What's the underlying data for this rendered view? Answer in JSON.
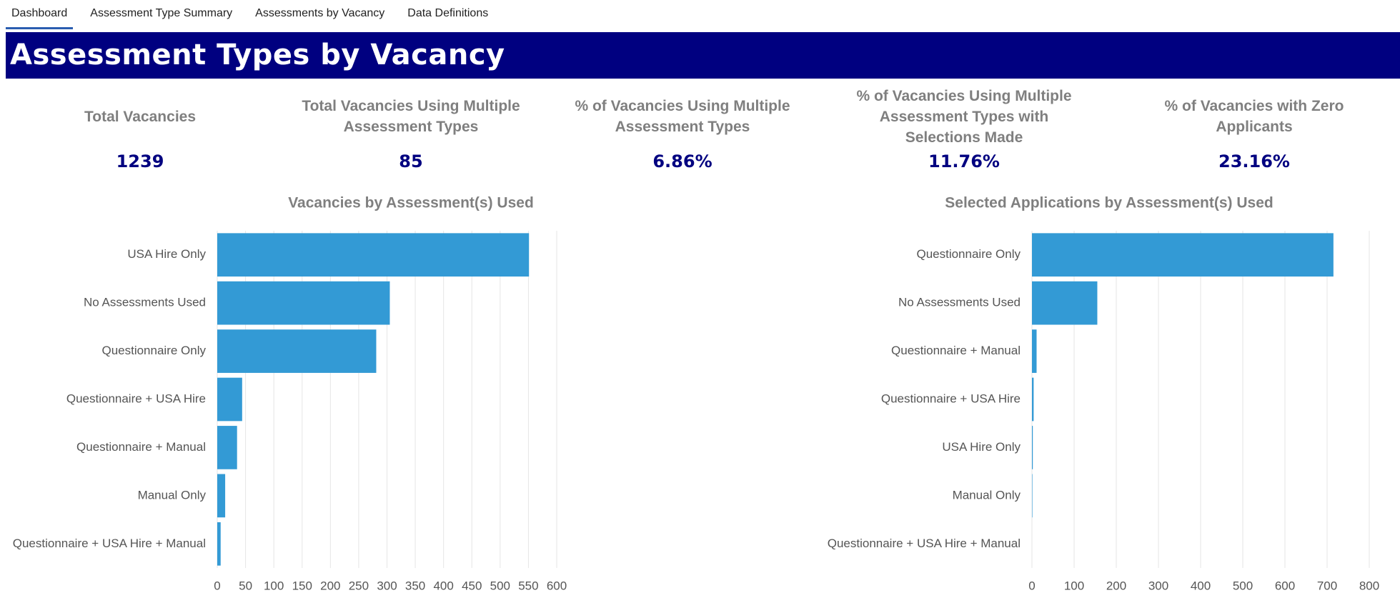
{
  "tabs": [
    "Dashboard",
    "Assessment Type Summary",
    "Assessments by Vacancy",
    "Data Definitions"
  ],
  "title": "Assessment Types by Vacancy",
  "kpis": [
    {
      "label": "Total Vacancies",
      "value": "1239"
    },
    {
      "label": "Total Vacancies Using Multiple Assessment Types",
      "value": "85"
    },
    {
      "label": "% of Vacancies Using Multiple Assessment Types",
      "value": "6.86%"
    },
    {
      "label": "% of Vacancies Using Multiple Assessment Types with Selections Made",
      "value": "11.76%"
    },
    {
      "label": "% of Vacancies with Zero Applicants",
      "value": "23.16%"
    }
  ],
  "chart_data": [
    {
      "type": "bar",
      "orientation": "horizontal",
      "title": "Vacancies by Assessment(s) Used",
      "categories": [
        "USA Hire Only",
        "No Assessments Used",
        "Questionnaire Only",
        "Questionnaire + USA Hire",
        "Questionnaire + Manual",
        "Manual Only",
        "Questionnaire + USA Hire + Manual"
      ],
      "values": [
        551,
        305,
        281,
        44,
        35,
        14,
        6
      ],
      "color": "#339ad5",
      "xlim": [
        0,
        600
      ],
      "xticks": [
        0,
        50,
        100,
        150,
        200,
        250,
        300,
        350,
        400,
        450,
        500,
        550,
        600
      ],
      "grid": true
    },
    {
      "type": "bar",
      "orientation": "horizontal",
      "title": "Selected Applications by Assessment(s) Used",
      "categories": [
        "Questionnaire Only",
        "No Assessments Used",
        "Questionnaire + Manual",
        "Questionnaire + USA Hire",
        "USA Hire Only",
        "Manual Only",
        "Questionnaire + USA Hire + Manual"
      ],
      "values": [
        715,
        155,
        11,
        4,
        2,
        1,
        0
      ],
      "color": "#339ad5",
      "xlim": [
        0,
        800
      ],
      "xticks": [
        0,
        100,
        200,
        300,
        400,
        500,
        600,
        700,
        800
      ],
      "grid": true
    }
  ]
}
